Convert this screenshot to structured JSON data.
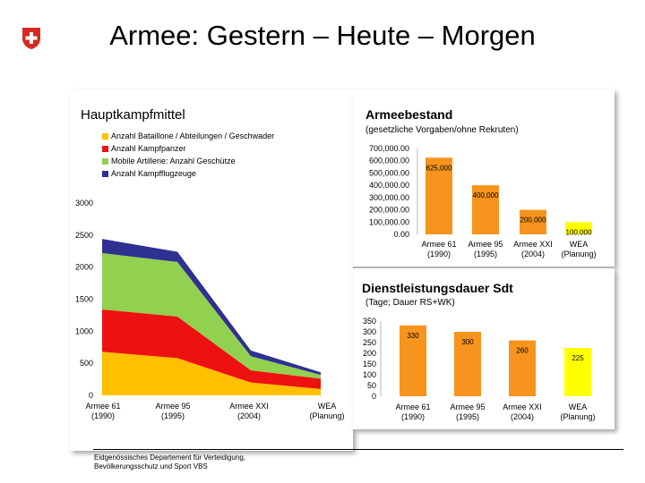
{
  "page": {
    "title": "Armee: Gestern – Heute – Morgen",
    "footer_line1": "Eidgenössisches Departement für Verteidigung,",
    "footer_line2": "Bevölkerungsschutz und Sport VBS"
  },
  "colors": {
    "swiss_red": "#d52b1e",
    "bataillone": "#ffc000",
    "kampfpanzer": "#ee1111",
    "artillerie": "#92d050",
    "flugzeuge": "#2e3192",
    "bar_orange": "#f7941d",
    "bar_yellow": "#ffff00"
  },
  "chart_data": [
    {
      "type": "area",
      "title": "Hauptkampfmittel",
      "categories": [
        "Armee 61 (1990)",
        "Armee 95 (1995)",
        "Armee XXI (2004)",
        "WEA (Planung)"
      ],
      "category_lines": [
        [
          "Armee 61",
          "(1990)"
        ],
        [
          "Armee 95",
          "(1995)"
        ],
        [
          "Armee XXI",
          "(2004)"
        ],
        [
          "WEA",
          "(Planung)"
        ]
      ],
      "stacked": true,
      "ylim": [
        0,
        3000
      ],
      "yticks": [
        "0",
        "500",
        "1000",
        "1500",
        "2000",
        "2500",
        "3000"
      ],
      "series": [
        {
          "name": "Anzahl Bataillone / Abteilungen / Geschwader",
          "values": [
            680,
            580,
            200,
            100
          ]
        },
        {
          "name": "Anzahl Kampfpanzer",
          "values": [
            660,
            650,
            190,
            160
          ]
        },
        {
          "name": "Mobile Artillerie: Anzahl Geschütze",
          "values": [
            880,
            850,
            220,
            60
          ]
        },
        {
          "name": "Anzahl Kampfflugzeuge",
          "values": [
            220,
            160,
            90,
            40
          ]
        }
      ],
      "legend": "top",
      "grid": false
    },
    {
      "type": "bar",
      "title": "Armeebestand",
      "subtitle": "(gesetzliche Vorgaben/ohne Rekruten)",
      "categories": [
        "Armee 61 (1990)",
        "Armee 95 (1995)",
        "Armee XXI (2004)",
        "WEA (Planung)"
      ],
      "category_lines": [
        [
          "Armee 61",
          "(1990)"
        ],
        [
          "Armee 95",
          "(1995)"
        ],
        [
          "Armee XXI",
          "(2004)"
        ],
        [
          "WEA",
          "(Planung)"
        ]
      ],
      "values": [
        625000,
        400000,
        200000,
        100000
      ],
      "value_labels": [
        "625,000",
        "400,000",
        "200,000",
        "100,000"
      ],
      "ylim": [
        0,
        700000
      ],
      "yticks": [
        "0.00",
        "100,000.00",
        "200,000.00",
        "300,000.00",
        "400,000.00",
        "500,000.00",
        "600,000.00",
        "700,000.00"
      ],
      "grid": false
    },
    {
      "type": "bar",
      "title": "Dienstleistungsdauer Sdt",
      "subtitle": "(Tage; Dauer RS+WK)",
      "categories": [
        "Armee 61 (1990)",
        "Armee 95 (1995)",
        "Armee XXI (2004)",
        "WEA (Planung)"
      ],
      "category_lines": [
        [
          "Armee 61",
          "(1990)"
        ],
        [
          "Armee 95",
          "(1995)"
        ],
        [
          "Armee XXI",
          "(2004)"
        ],
        [
          "WEA",
          "(Planung)"
        ]
      ],
      "values": [
        330,
        300,
        260,
        225
      ],
      "value_labels": [
        "330",
        "300",
        "260",
        "225"
      ],
      "ylim": [
        0,
        350
      ],
      "yticks": [
        "0",
        "50",
        "100",
        "150",
        "200",
        "250",
        "300",
        "350"
      ],
      "grid": false
    }
  ]
}
